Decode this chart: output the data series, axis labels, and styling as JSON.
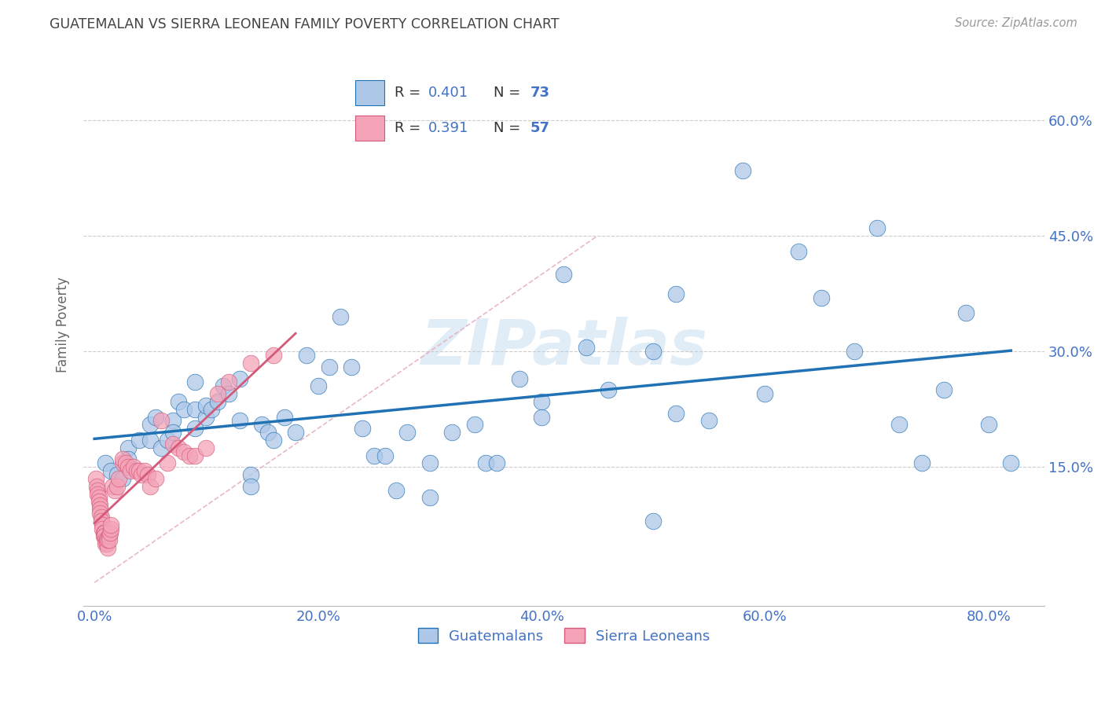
{
  "title": "GUATEMALAN VS SIERRA LEONEAN FAMILY POVERTY CORRELATION CHART",
  "source": "Source: ZipAtlas.com",
  "xlabel_ticks": [
    "0.0%",
    "20.0%",
    "40.0%",
    "60.0%",
    "80.0%"
  ],
  "xlabel_vals": [
    0.0,
    0.2,
    0.4,
    0.6,
    0.8
  ],
  "ylabel": "Family Poverty",
  "ylabel_ticks": [
    "15.0%",
    "30.0%",
    "45.0%",
    "60.0%"
  ],
  "ylabel_vals": [
    0.15,
    0.3,
    0.45,
    0.6
  ],
  "xlim": [
    -0.01,
    0.85
  ],
  "ylim": [
    -0.03,
    0.7
  ],
  "legend_entry1": "R = 0.401   N = 73",
  "legend_entry2": "R = 0.391   N = 57",
  "legend_label1": "Guatemalans",
  "legend_label2": "Sierra Leoneans",
  "color_blue": "#aec8e8",
  "color_pink": "#f4a3b8",
  "color_line_blue": "#2171b5",
  "color_line_pink": "#d45a7a",
  "color_diag": "#e8b0c0",
  "watermark": "ZIPatlas",
  "background_color": "#ffffff",
  "grid_color": "#cccccc",
  "title_color": "#444444",
  "axis_label_color": "#4472c4",
  "source_color": "#999999",
  "blue_x": [
    0.01,
    0.015,
    0.02,
    0.025,
    0.03,
    0.03,
    0.04,
    0.05,
    0.05,
    0.055,
    0.06,
    0.065,
    0.07,
    0.07,
    0.075,
    0.08,
    0.09,
    0.09,
    0.09,
    0.1,
    0.1,
    0.105,
    0.11,
    0.115,
    0.12,
    0.13,
    0.13,
    0.14,
    0.14,
    0.15,
    0.155,
    0.16,
    0.17,
    0.18,
    0.19,
    0.2,
    0.21,
    0.22,
    0.23,
    0.24,
    0.25,
    0.26,
    0.27,
    0.28,
    0.3,
    0.32,
    0.34,
    0.35,
    0.36,
    0.38,
    0.4,
    0.42,
    0.44,
    0.46,
    0.5,
    0.52,
    0.55,
    0.58,
    0.6,
    0.63,
    0.65,
    0.68,
    0.7,
    0.72,
    0.74,
    0.76,
    0.78,
    0.8,
    0.82,
    0.52,
    0.4,
    0.3,
    0.5
  ],
  "blue_y": [
    0.155,
    0.145,
    0.14,
    0.135,
    0.175,
    0.16,
    0.185,
    0.185,
    0.205,
    0.215,
    0.175,
    0.185,
    0.21,
    0.195,
    0.235,
    0.225,
    0.2,
    0.225,
    0.26,
    0.215,
    0.23,
    0.225,
    0.235,
    0.255,
    0.245,
    0.21,
    0.265,
    0.14,
    0.125,
    0.205,
    0.195,
    0.185,
    0.215,
    0.195,
    0.295,
    0.255,
    0.28,
    0.345,
    0.28,
    0.2,
    0.165,
    0.165,
    0.12,
    0.195,
    0.11,
    0.195,
    0.205,
    0.155,
    0.155,
    0.265,
    0.235,
    0.4,
    0.305,
    0.25,
    0.3,
    0.375,
    0.21,
    0.535,
    0.245,
    0.43,
    0.37,
    0.3,
    0.46,
    0.205,
    0.155,
    0.25,
    0.35,
    0.205,
    0.155,
    0.22,
    0.215,
    0.155,
    0.08
  ],
  "pink_x": [
    0.001,
    0.002,
    0.003,
    0.003,
    0.004,
    0.004,
    0.005,
    0.005,
    0.005,
    0.006,
    0.006,
    0.007,
    0.007,
    0.008,
    0.008,
    0.009,
    0.009,
    0.01,
    0.01,
    0.011,
    0.011,
    0.012,
    0.012,
    0.013,
    0.013,
    0.014,
    0.015,
    0.015,
    0.016,
    0.018,
    0.02,
    0.022,
    0.025,
    0.025,
    0.028,
    0.03,
    0.032,
    0.035,
    0.038,
    0.04,
    0.042,
    0.045,
    0.048,
    0.05,
    0.055,
    0.06,
    0.065,
    0.07,
    0.075,
    0.08,
    0.085,
    0.09,
    0.1,
    0.11,
    0.12,
    0.14,
    0.16
  ],
  "pink_y": [
    0.135,
    0.125,
    0.12,
    0.115,
    0.11,
    0.105,
    0.1,
    0.095,
    0.09,
    0.085,
    0.08,
    0.075,
    0.07,
    0.065,
    0.06,
    0.065,
    0.06,
    0.055,
    0.05,
    0.055,
    0.05,
    0.045,
    0.055,
    0.06,
    0.055,
    0.065,
    0.07,
    0.075,
    0.125,
    0.12,
    0.125,
    0.135,
    0.155,
    0.16,
    0.155,
    0.15,
    0.145,
    0.15,
    0.145,
    0.145,
    0.14,
    0.145,
    0.14,
    0.125,
    0.135,
    0.21,
    0.155,
    0.18,
    0.175,
    0.17,
    0.165,
    0.165,
    0.175,
    0.245,
    0.26,
    0.285,
    0.295
  ]
}
